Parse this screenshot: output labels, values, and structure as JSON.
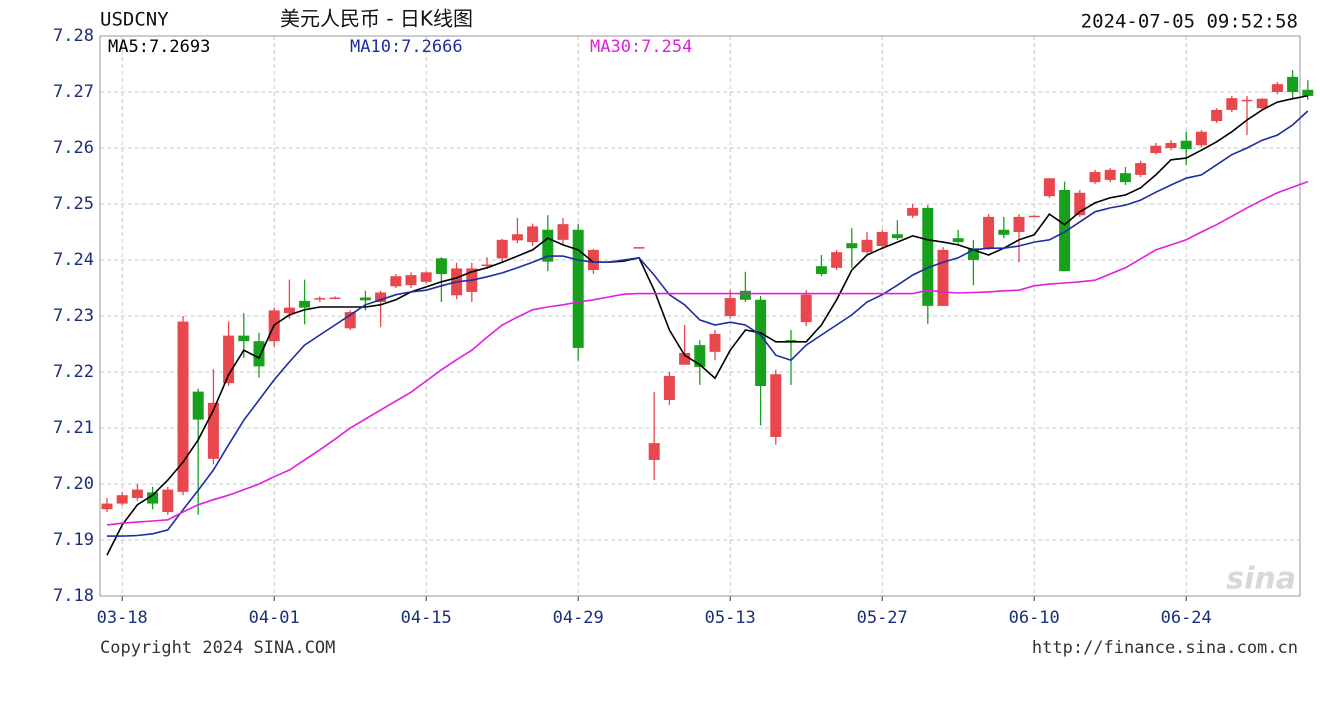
{
  "chart_data": {
    "type": "candlestick",
    "symbol": "USDCNY",
    "title": "美元人民币 - 日K线图",
    "timestamp": "2024-07-05 09:52:58",
    "categories": [
      null,
      "03-18",
      null,
      null,
      null,
      null,
      null,
      null,
      null,
      null,
      null,
      "04-01",
      null,
      null,
      null,
      null,
      null,
      null,
      null,
      null,
      null,
      "04-15",
      null,
      null,
      null,
      null,
      null,
      null,
      null,
      null,
      null,
      "04-29",
      null,
      null,
      null,
      null,
      null,
      null,
      null,
      null,
      null,
      "05-13",
      null,
      null,
      null,
      null,
      null,
      null,
      null,
      null,
      null,
      "05-27",
      null,
      null,
      null,
      null,
      null,
      null,
      null,
      null,
      null,
      "06-10",
      null,
      null,
      null,
      null,
      null,
      null,
      null,
      null,
      null,
      "06-24",
      null,
      null,
      null,
      null,
      null,
      null,
      null,
      null
    ],
    "open": [
      7.1955,
      7.1965,
      7.1975,
      7.1985,
      7.195,
      7.1986,
      7.2165,
      7.2045,
      7.218,
      7.2265,
      7.2255,
      7.2255,
      7.2305,
      7.2327,
      7.233,
      7.2332,
      7.2278,
      7.2333,
      7.2325,
      7.2353,
      7.2355,
      7.2361,
      7.2403,
      7.2337,
      7.2343,
      7.239,
      7.2403,
      7.2435,
      7.2432,
      7.2454,
      7.2436,
      7.2454,
      7.2382,
      null,
      null,
      7.2422,
      7.2043,
      7.215,
      7.2213,
      7.2248,
      7.2236,
      7.23,
      7.2345,
      7.2329,
      7.2084,
      7.2257,
      7.2289,
      7.2389,
      7.2386,
      7.243,
      7.2414,
      7.2425,
      7.2446,
      7.2479,
      7.2493,
      7.2318,
      7.2439,
      7.2421,
      7.2421,
      7.2454,
      7.245,
      7.2479,
      7.2514,
      7.2525,
      7.248,
      7.2539,
      7.2543,
      7.2555,
      7.2552,
      7.2591,
      7.26,
      7.2613,
      7.2605,
      7.2648,
      7.2668,
      7.2684,
      7.2671,
      7.27,
      7.2727,
      7.2704
    ],
    "high": [
      7.1975,
      7.1985,
      7.2,
      7.1995,
      7.1995,
      7.23,
      7.217,
      7.2205,
      7.229,
      7.2305,
      7.227,
      7.2315,
      7.2365,
      7.2365,
      7.2335,
      7.2335,
      7.231,
      7.2345,
      7.2345,
      7.2375,
      7.2378,
      7.238,
      7.2405,
      7.2395,
      7.2395,
      7.2405,
      7.2438,
      7.2475,
      7.2465,
      7.248,
      7.2475,
      7.2465,
      7.242,
      null,
      null,
      7.2423,
      7.2164,
      7.22,
      7.2284,
      7.2257,
      7.2275,
      7.2346,
      7.2379,
      7.2336,
      7.2204,
      7.2275,
      7.2346,
      7.2409,
      7.2418,
      7.2457,
      7.245,
      7.2454,
      7.2471,
      7.25,
      7.2498,
      7.2423,
      7.2454,
      7.2436,
      7.2482,
      7.2477,
      7.2482,
      7.248,
      7.2546,
      7.254,
      7.2525,
      7.2561,
      7.2564,
      7.2566,
      7.2577,
      7.2609,
      7.2614,
      7.2629,
      7.2632,
      7.2671,
      7.2693,
      7.2693,
      7.2689,
      7.2718,
      7.2739,
      7.2721
    ],
    "low": [
      7.195,
      7.1962,
      7.197,
      7.1955,
      7.1945,
      7.198,
      7.1945,
      7.2035,
      7.2175,
      7.2225,
      7.219,
      7.2245,
      7.2295,
      7.2285,
      7.2325,
      7.233,
      7.2275,
      7.231,
      7.228,
      7.235,
      7.235,
      7.2358,
      7.2325,
      7.233,
      7.2325,
      7.2385,
      7.2395,
      7.243,
      7.2425,
      7.238,
      7.2425,
      7.222,
      7.2375,
      null,
      null,
      7.2421,
      7.2007,
      7.2141,
      7.2213,
      7.2177,
      7.2221,
      7.2296,
      7.2325,
      7.2105,
      7.207,
      7.2177,
      7.2282,
      7.2371,
      7.2382,
      7.2386,
      7.2411,
      7.2421,
      7.2436,
      7.2475,
      7.2286,
      7.2318,
      7.2429,
      7.2355,
      7.2418,
      7.2439,
      7.2396,
      7.2478,
      7.2511,
      7.238,
      7.2477,
      7.2536,
      7.2539,
      7.2534,
      7.2548,
      7.2588,
      7.2596,
      7.257,
      7.2602,
      7.2645,
      7.2664,
      7.2623,
      7.2668,
      7.2696,
      7.2686,
      7.2686
    ],
    "close": [
      7.1965,
      7.198,
      7.199,
      7.1965,
      7.199,
      7.229,
      7.2115,
      7.2145,
      7.2265,
      7.2255,
      7.221,
      7.231,
      7.2315,
      7.2315,
      7.2332,
      7.2333,
      7.2307,
      7.2328,
      7.2342,
      7.2371,
      7.2373,
      7.2378,
      7.2375,
      7.2385,
      7.2385,
      7.2392,
      7.2436,
      7.2446,
      7.246,
      7.2397,
      7.2464,
      7.2243,
      7.2418,
      null,
      null,
      7.2423,
      7.2073,
      7.2193,
      7.2234,
      7.2209,
      7.2268,
      7.2332,
      7.2329,
      7.2175,
      7.2196,
      7.2254,
      7.2338,
      7.2375,
      7.2414,
      7.2421,
      7.2436,
      7.245,
      7.2439,
      7.2493,
      7.2318,
      7.2418,
      7.2432,
      7.24,
      7.2477,
      7.2445,
      7.2477,
      7.2479,
      7.2546,
      7.238,
      7.252,
      7.2557,
      7.2561,
      7.2539,
      7.2573,
      7.2604,
      7.2609,
      7.2598,
      7.2629,
      7.2668,
      7.2689,
      7.2686,
      7.2688,
      7.2714,
      7.27,
      7.2693
    ],
    "up_color": "#e8474d",
    "down_color": "#17a01c",
    "series": [
      {
        "name": "MA5:7.2693",
        "color": "#000000",
        "values": [
          7.1873,
          7.1927,
          7.1963,
          7.198,
          7.2007,
          7.2039,
          7.2079,
          7.2132,
          7.2195,
          7.2239,
          7.2225,
          7.2284,
          7.2302,
          7.2311,
          7.2316,
          7.2316,
          7.2316,
          7.2316,
          7.232,
          7.2329,
          7.2343,
          7.2352,
          7.2361,
          7.2368,
          7.2379,
          7.2386,
          7.2396,
          7.2407,
          7.2418,
          7.2439,
          7.2427,
          7.2418,
          7.2396,
          7.2396,
          7.2398,
          7.2404,
          7.2346,
          7.2275,
          7.223,
          7.2213,
          7.2189,
          7.2239,
          7.2275,
          7.227,
          7.2254,
          7.2254,
          7.2254,
          7.2284,
          7.2329,
          7.2382,
          7.2409,
          7.2421,
          7.2432,
          7.2443,
          7.2436,
          7.2432,
          7.2427,
          7.2418,
          7.2409,
          7.2421,
          7.2436,
          7.2445,
          7.2482,
          7.2463,
          7.2486,
          7.2502,
          7.2511,
          7.2516,
          7.2529,
          7.2552,
          7.2579,
          7.2582,
          7.2596,
          7.2611,
          7.2629,
          7.265,
          7.2668,
          7.2682,
          7.2688,
          7.2693
        ]
      },
      {
        "name": "MA10:7.2666",
        "color": "#1c2ea0",
        "values": [
          7.1907,
          7.1907,
          7.1908,
          7.1911,
          7.1918,
          7.1954,
          7.1989,
          7.2025,
          7.207,
          7.2114,
          7.215,
          7.2186,
          7.2218,
          7.2248,
          7.2266,
          7.2284,
          7.2302,
          7.232,
          7.2329,
          7.2338,
          7.2343,
          7.2346,
          7.2354,
          7.2361,
          7.2364,
          7.237,
          7.2377,
          7.2386,
          7.2396,
          7.2407,
          7.2407,
          7.24,
          7.2396,
          7.2396,
          7.24,
          7.2404,
          7.2373,
          7.2338,
          7.232,
          7.2293,
          7.2284,
          7.2289,
          7.2284,
          7.2266,
          7.223,
          7.2221,
          7.2248,
          7.2266,
          7.2284,
          7.2302,
          7.2325,
          7.2338,
          7.2355,
          7.2373,
          7.2386,
          7.2396,
          7.2404,
          7.2418,
          7.2421,
          7.2421,
          7.2425,
          7.2432,
          7.2436,
          7.245,
          7.2468,
          7.2486,
          7.2493,
          7.2498,
          7.2507,
          7.2521,
          7.2534,
          7.2546,
          7.2552,
          7.257,
          7.2588,
          7.26,
          7.2614,
          7.2623,
          7.2641,
          7.2666
        ]
      },
      {
        "name": "MA30:7.254",
        "color": "#e020e0",
        "values": [
          7.1927,
          7.193,
          7.1932,
          7.1934,
          7.1936,
          7.195,
          7.1963,
          7.1972,
          7.198,
          7.199,
          7.2,
          7.2013,
          7.2025,
          7.2043,
          7.2061,
          7.208,
          7.21,
          7.2116,
          7.2132,
          7.2148,
          7.2164,
          7.2184,
          7.2204,
          7.2222,
          7.2239,
          7.2262,
          7.2284,
          7.2298,
          7.2311,
          7.2316,
          7.232,
          7.2325,
          7.2329,
          7.2334,
          7.2339,
          7.234,
          7.234,
          7.234,
          7.234,
          7.234,
          7.234,
          7.234,
          7.234,
          7.234,
          7.234,
          7.234,
          7.234,
          7.234,
          7.234,
          7.234,
          7.234,
          7.234,
          7.234,
          7.234,
          7.2346,
          7.2343,
          7.2341,
          7.2342,
          7.2343,
          7.2345,
          7.2346,
          7.2354,
          7.2357,
          7.2359,
          7.2361,
          7.2364,
          7.2375,
          7.2386,
          7.2402,
          7.2418,
          7.2427,
          7.2436,
          7.245,
          7.2463,
          7.2478,
          7.2493,
          7.2507,
          7.252,
          7.253,
          7.254
        ]
      }
    ],
    "ylim": [
      7.18,
      7.28
    ],
    "yticks": [
      7.18,
      7.19,
      {
        "value": 7.2,
        "label": "7.20"
      },
      7.21,
      7.22,
      7.23,
      7.24,
      7.25,
      7.26,
      7.27,
      7.28
    ],
    "grid": true,
    "watermark": "sina",
    "copyright": "Copyright 2024 SINA.COM",
    "url": "http://finance.sina.com.cn"
  }
}
